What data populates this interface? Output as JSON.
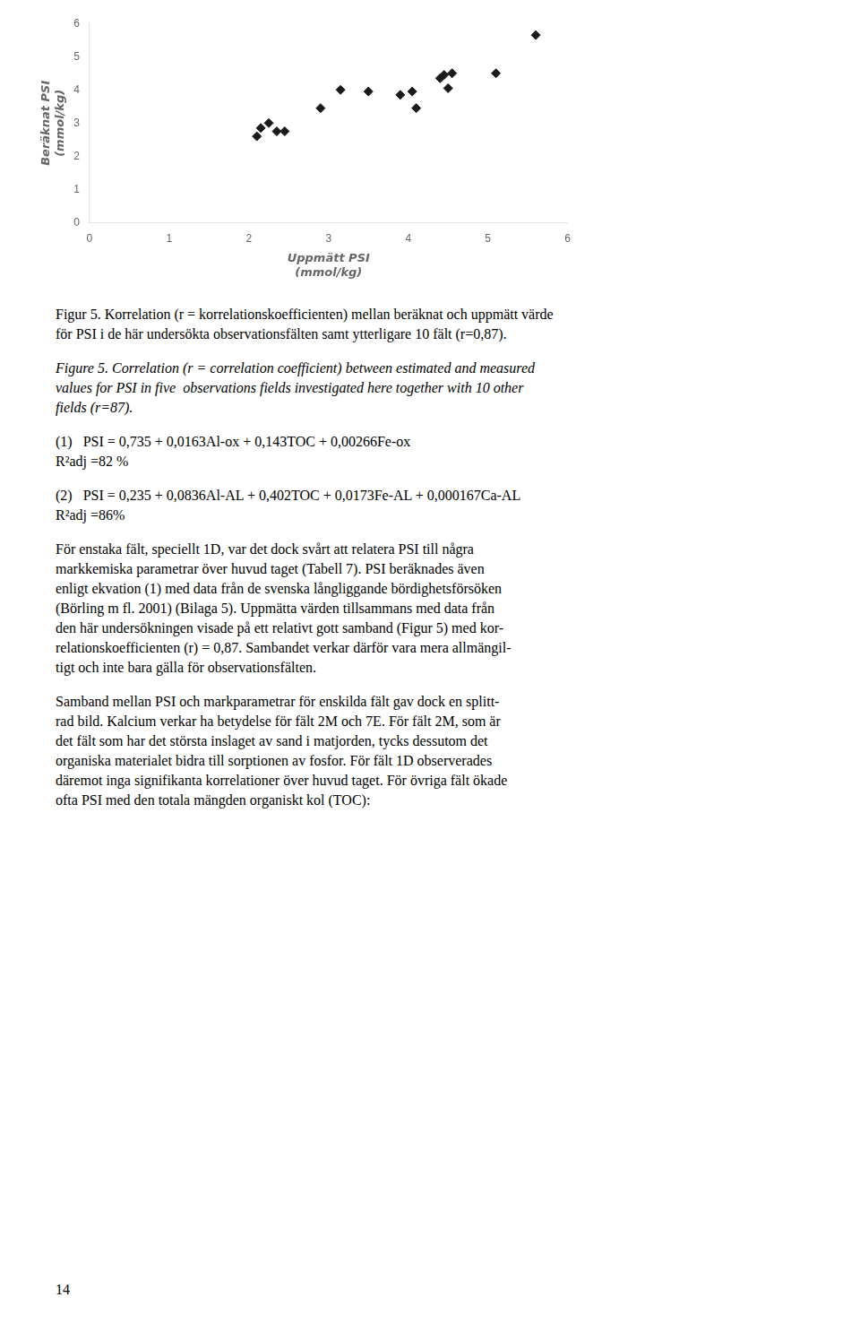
{
  "chart_data": {
    "type": "scatter",
    "x": [
      2.1,
      2.15,
      2.25,
      2.35,
      2.45,
      2.9,
      3.15,
      3.5,
      3.9,
      4.05,
      4.1,
      4.4,
      4.45,
      4.5,
      4.55,
      5.1,
      5.6
    ],
    "values": [
      2.6,
      2.85,
      3.0,
      2.75,
      2.75,
      3.45,
      4.0,
      3.95,
      3.85,
      3.95,
      3.45,
      4.35,
      4.45,
      4.05,
      4.5,
      4.5,
      5.65
    ],
    "xlim": [
      0,
      6
    ],
    "ylim": [
      0,
      6
    ],
    "xticks": [
      0,
      1,
      2,
      3,
      4,
      5,
      6
    ],
    "yticks": [
      0,
      1,
      2,
      3,
      4,
      5,
      6
    ],
    "xlabel": [
      "Uppmätt PSI",
      "(mmol/kg)"
    ],
    "ylabel": [
      "Beräknat PSI",
      "(mmol/kg)"
    ],
    "color": "#1a1a1a",
    "marker": "diamond",
    "grid": false,
    "annotations": [
      [
        "Figur 5. Korrelation (r = korrelationskoefficienten) mellan beräknat och uppmätt värde",
        "för PSI i de här undersökta observationsfälten samt ytterligare 10 fält (r=0,87)."
      ],
      [
        "Figure 5. Correlation (r = correlation coefficient) between estimated and measured",
        "values for PSI in five  observations fields investigated here together with 10 other",
        "fields (r=87)."
      ],
      [
        "(1)   PSI = 0,735 + 0,0163Al-ox + 0,143TOC + 0,00266Fe-ox",
        "R²adj =82 %"
      ],
      [
        "(2)   PSI = 0,235 + 0,0836Al-AL + 0,402TOC + 0,0173Fe-AL + 0,000167Ca-AL",
        "R²adj =86%"
      ],
      [
        "För enstaka fält, speciellt 1D, var det dock svårt att relatera PSI till några",
        "markkemiska parametrar över huvud taget (Tabell 7). PSI beräknades även",
        "enligt ekvation (1) med data från de svenska långliggande bördighetsförsöken",
        "(Börling m fl. 2001) (Bilaga 5). Uppmätta värden tillsammans med data från",
        "den här undersökningen visade på ett relativt gott samband (Figur 5) med kor-",
        "relationskoefficienten (r) = 0,87. Sambandet verkar därför vara mera allmängil-",
        "tigt och inte bara gälla för observationsfälten."
      ],
      [
        "Samband mellan PSI och markparametrar för enskilda fält gav dock en splitt-",
        "rad bild. Kalcium verkar ha betydelse för fält 2M och 7E. För fält 2M, som är",
        "det fält som har det största inslaget av sand i matjorden, tycks dessutom det",
        "organiska materialet bidra till sorptionen av fosfor. För fält 1D observerades",
        "däremot inga signifikanta korrelationer över huvud taget. För övriga fält ökade",
        "ofta PSI med den totala mängden organiskt kol (TOC):"
      ],
      [
        "14"
      ]
    ]
  }
}
